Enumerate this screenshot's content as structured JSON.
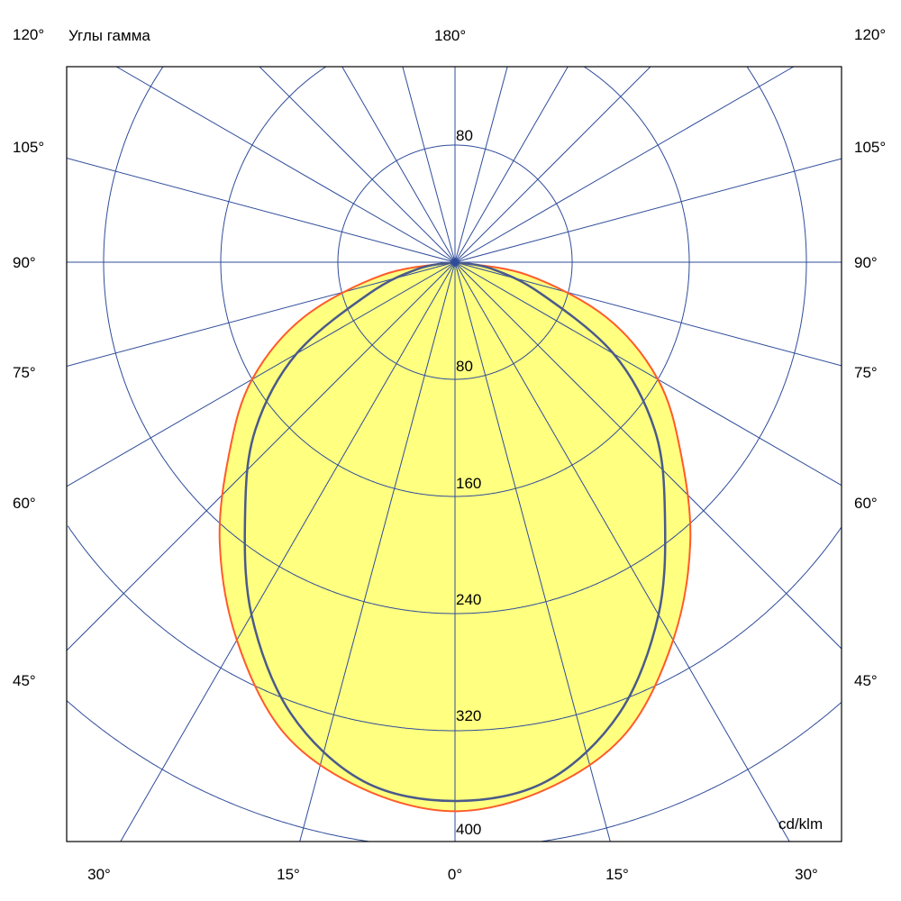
{
  "chart_data": {
    "type": "polar",
    "title": "Углы гамма",
    "unit_label": "cd/klm",
    "top_label": "180°",
    "left_angle_labels": [
      "120°",
      "105°",
      "90°",
      "75°",
      "60°",
      "45°"
    ],
    "right_angle_labels": [
      "120°",
      "105°",
      "90°",
      "75°",
      "60°",
      "45°"
    ],
    "bottom_angle_labels": [
      "30°",
      "15°",
      "0°",
      "15°",
      "30°"
    ],
    "ring_values": [
      80,
      160,
      240,
      320,
      400
    ],
    "ring_labels": {
      "upper": "80",
      "r80": "80",
      "r160": "160",
      "r240": "240",
      "r320": "320",
      "r400": "400"
    },
    "spoke_step_deg": 15,
    "rlim": [
      0,
      400
    ],
    "grid": true,
    "gamma": [
      0,
      10,
      20,
      30,
      40,
      50,
      60,
      70,
      80,
      90
    ],
    "series": [
      {
        "color": "#ff5a2a",
        "fill": "#ffff80",
        "values": [
          375,
          365,
          342,
          298,
          250,
          201,
          160,
          110,
          50,
          0
        ]
      },
      {
        "color": "#4a5a8a",
        "values": [
          368,
          360,
          328,
          278,
          223,
          178,
          125,
          62,
          25,
          0
        ]
      }
    ],
    "colors": {
      "grid": "#2f4c9a",
      "frame": "#000000"
    }
  }
}
